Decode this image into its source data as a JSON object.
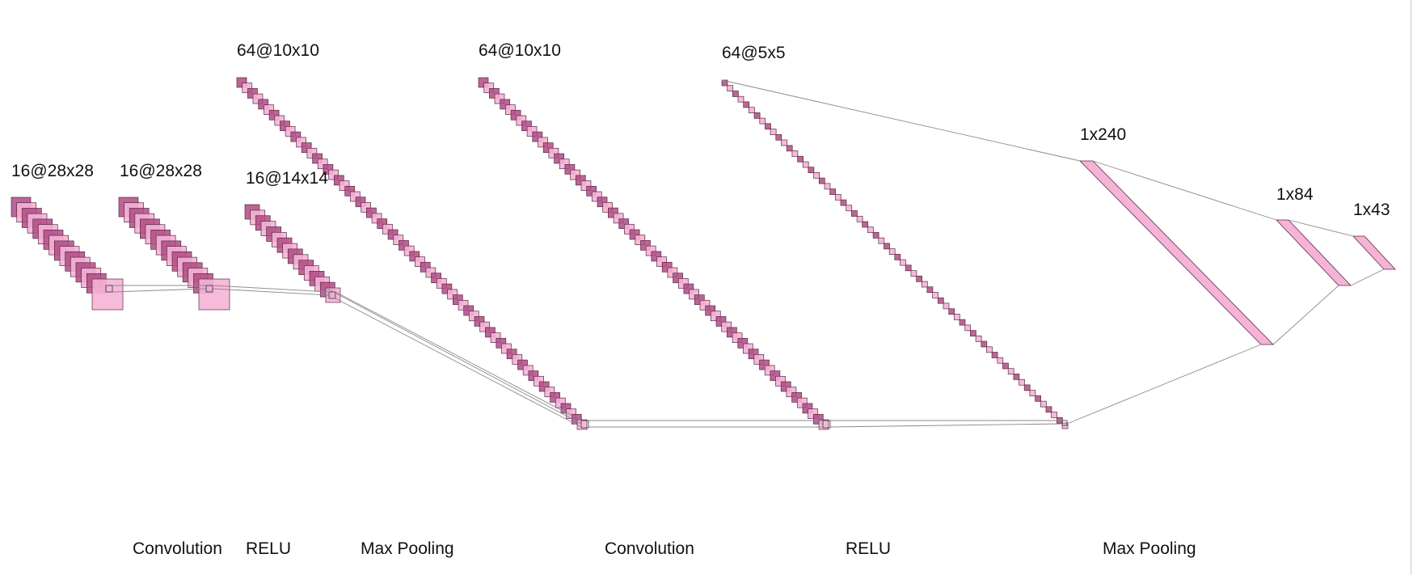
{
  "layers": [
    {
      "id": "conv1-out",
      "label": "16@28x28",
      "count": 16,
      "kind": "square"
    },
    {
      "id": "relu1-out",
      "label": "16@28x28",
      "count": 16,
      "kind": "square"
    },
    {
      "id": "pool1-out",
      "label": "16@14x14",
      "count": 16,
      "kind": "square"
    },
    {
      "id": "conv2-out",
      "label": "64@10x10",
      "count": 64,
      "kind": "square"
    },
    {
      "id": "relu2-out",
      "label": "64@10x10",
      "count": 64,
      "kind": "square"
    },
    {
      "id": "pool2-out",
      "label": "64@5x5",
      "count": 64,
      "kind": "square"
    },
    {
      "id": "fc1",
      "label": "1x240",
      "kind": "vector"
    },
    {
      "id": "fc2",
      "label": "1x84",
      "kind": "vector"
    },
    {
      "id": "fc3",
      "label": "1x43",
      "kind": "vector"
    }
  ],
  "operations": [
    "Convolution",
    "RELU",
    "Max Pooling",
    "Convolution",
    "RELU",
    "Max Pooling"
  ],
  "colors": {
    "light": "#f5b3d6",
    "dark": "#b04a84",
    "stroke": "#5a2a45",
    "line": "#8a8a8a",
    "border": "#c8c8c8"
  }
}
